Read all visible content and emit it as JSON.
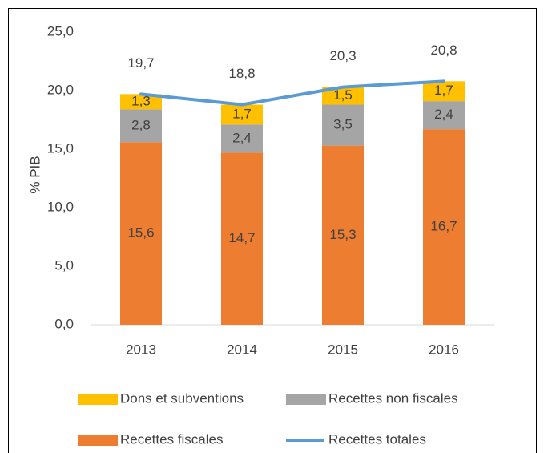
{
  "chart_data": {
    "type": "bar",
    "stacked": true,
    "y_label": "% PIB",
    "categories": [
      "2013",
      "2014",
      "2015",
      "2016"
    ],
    "series": [
      {
        "name": "Recettes fiscales",
        "color": "#ED7D31",
        "values": [
          15.6,
          14.7,
          15.3,
          16.7
        ],
        "value_labels": [
          "15,6",
          "14,7",
          "15,3",
          "16,7"
        ]
      },
      {
        "name": "Recettes non fiscales",
        "color": "#A5A5A5",
        "values": [
          2.8,
          2.4,
          3.5,
          2.4
        ],
        "value_labels": [
          "2,8",
          "2,4",
          "3,5",
          "2,4"
        ]
      },
      {
        "name": "Dons et subventions",
        "color": "#FFC000",
        "values": [
          1.3,
          1.7,
          1.5,
          1.7
        ],
        "value_labels": [
          "1,3",
          "1,7",
          "1,5",
          "1,7"
        ]
      },
      {
        "name": "Recettes totales",
        "color": "#5B9BD5",
        "type": "line",
        "values": [
          19.7,
          18.8,
          20.3,
          20.8
        ],
        "value_labels": [
          "19,7",
          "18,8",
          "20,3",
          "20,8"
        ]
      }
    ],
    "ylim": [
      0,
      25
    ],
    "yticks": [
      {
        "value": 0,
        "label": "0,0"
      },
      {
        "value": 5,
        "label": "5,0"
      },
      {
        "value": 10,
        "label": "10,0"
      },
      {
        "value": 15,
        "label": "15,0"
      },
      {
        "value": 20,
        "label": "20,0"
      },
      {
        "value": 25,
        "label": "25,0"
      }
    ],
    "grid": false
  }
}
